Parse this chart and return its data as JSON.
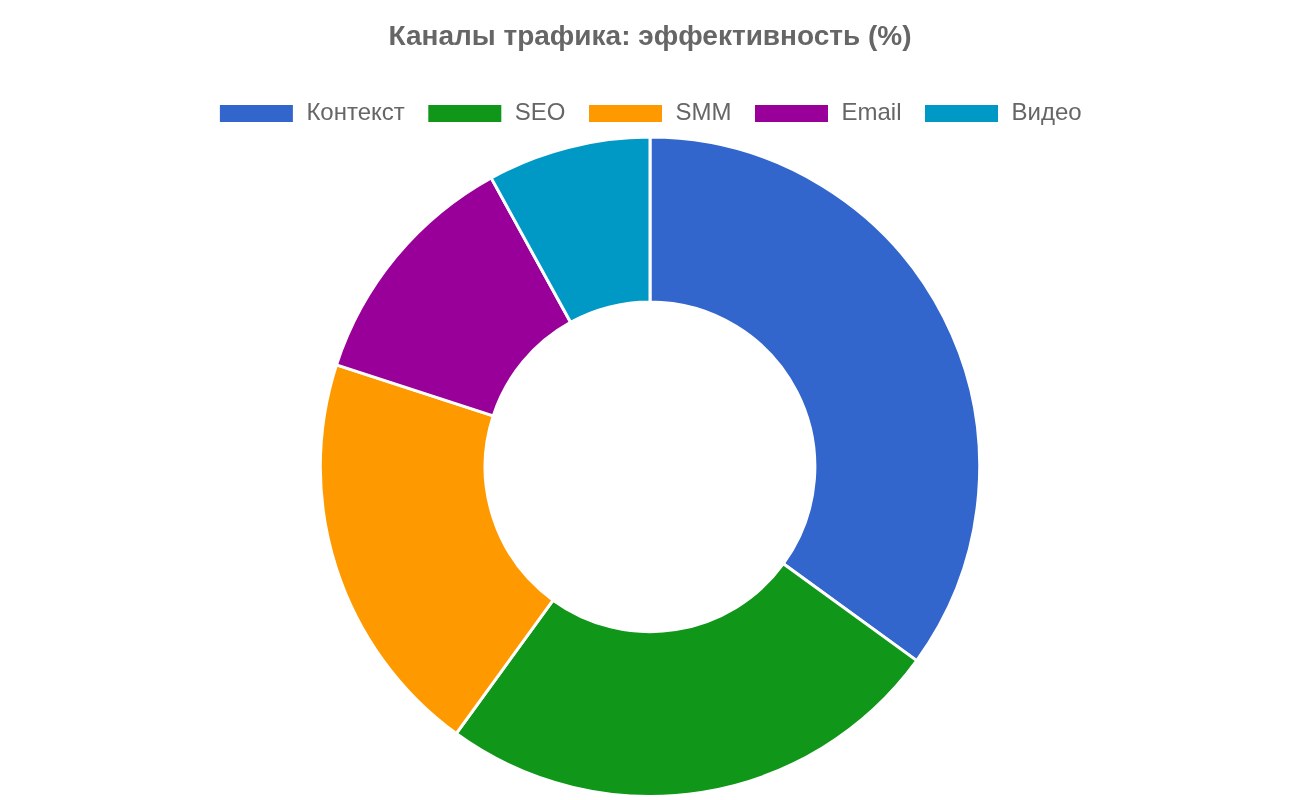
{
  "chart_data": {
    "type": "donut",
    "title": "Каналы трафика: эффективность (%)",
    "categories": [
      "Контекст",
      "SEO",
      "SMM",
      "Email",
      "Видео"
    ],
    "values": [
      35,
      25,
      20,
      12,
      8
    ],
    "colors": [
      "#3366cc",
      "#109618",
      "#ff9900",
      "#990099",
      "#0099c6"
    ],
    "legend": "top"
  }
}
